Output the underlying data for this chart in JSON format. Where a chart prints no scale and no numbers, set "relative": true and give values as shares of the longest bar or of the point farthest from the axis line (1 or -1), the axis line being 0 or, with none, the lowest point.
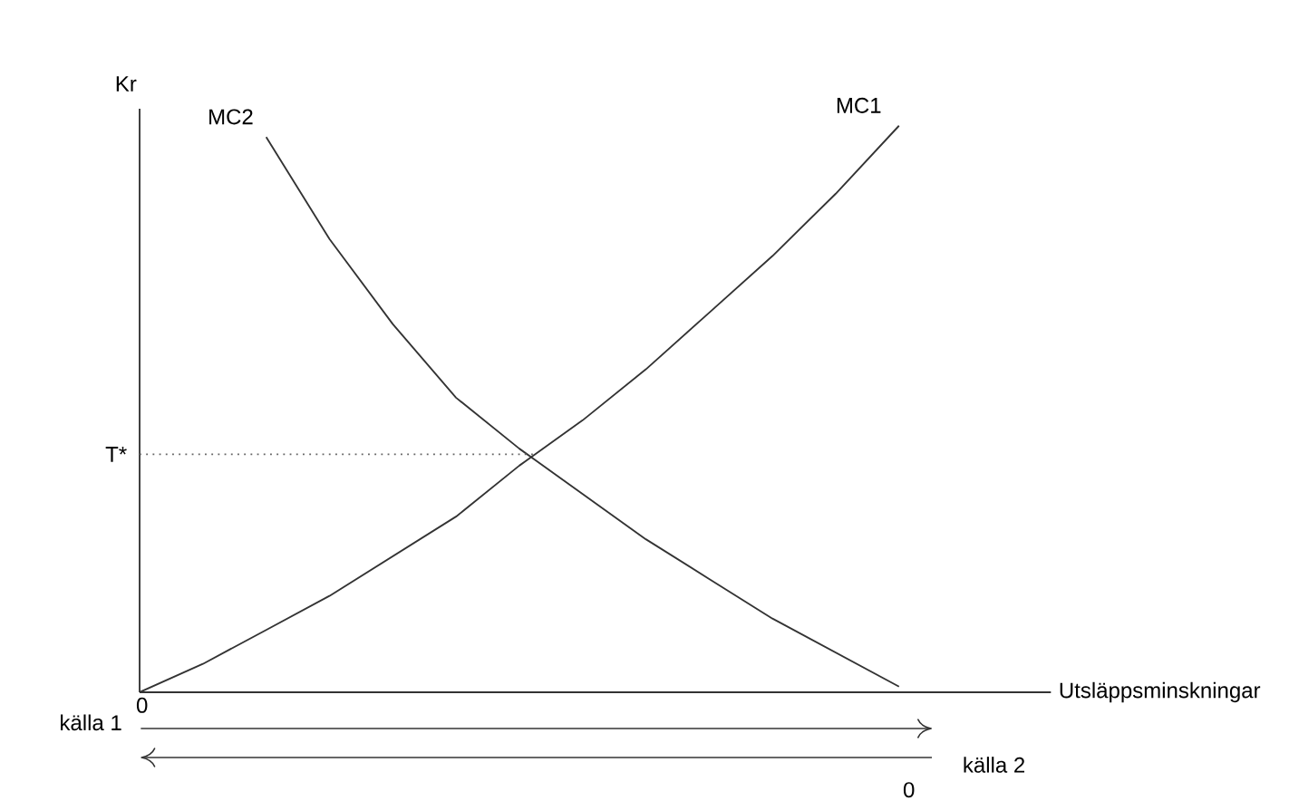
{
  "chart_data": {
    "type": "line",
    "relative": true,
    "ylabel": "Kr",
    "categories": [
      null,
      null,
      null,
      null,
      null,
      null,
      null,
      null,
      null,
      null,
      null,
      null,
      null
    ],
    "series": [
      {
        "name": "MC1",
        "color": "#333333",
        "values": [
          0,
          0.05,
          0.11,
          0.17,
          0.24,
          0.31,
          0.4,
          0.48,
          0.57,
          0.67,
          0.77,
          0.88,
          1.0
        ]
      },
      {
        "name": "MC2",
        "color": "#333333",
        "values": [
          null,
          null,
          0.98,
          0.8,
          0.65,
          0.52,
          0.43,
          0.35,
          0.27,
          0.2,
          0.13,
          0.07,
          0.01
        ]
      }
    ],
    "ref_lines": [
      {
        "axis": "y",
        "value": 0.42,
        "label": "T*",
        "line_style": "dotted",
        "color": "#666666"
      }
    ],
    "annotations": [
      "källa 1",
      "0",
      "källa 2",
      "0",
      "Utsläppsminskningar"
    ]
  }
}
